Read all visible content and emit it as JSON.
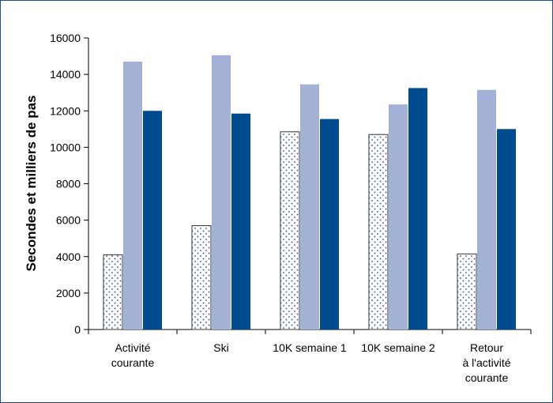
{
  "chart_data": {
    "type": "bar",
    "title": "",
    "xlabel": "",
    "ylabel": "Secondes et milliers de pas",
    "ylim": [
      0,
      16000
    ],
    "yticks": [
      0,
      2000,
      4000,
      6000,
      8000,
      10000,
      12000,
      14000,
      16000
    ],
    "grid": false,
    "legend": "none",
    "categories": [
      [
        "Activité",
        "courante"
      ],
      [
        "Ski"
      ],
      [
        "10K semaine 1"
      ],
      [
        "10K semaine 2"
      ],
      [
        "Retour",
        "à l'activité",
        "courante"
      ]
    ],
    "series": [
      {
        "values": [
          4100,
          5700,
          10850,
          10700,
          4150
        ],
        "color": "#ffffff",
        "pattern": "dots"
      },
      {
        "values": [
          14700,
          15050,
          13450,
          12350,
          13150
        ],
        "color": "#a3b1d6"
      },
      {
        "values": [
          12000,
          11850,
          11550,
          13250,
          11000
        ],
        "color": "#004a8f"
      }
    ]
  }
}
